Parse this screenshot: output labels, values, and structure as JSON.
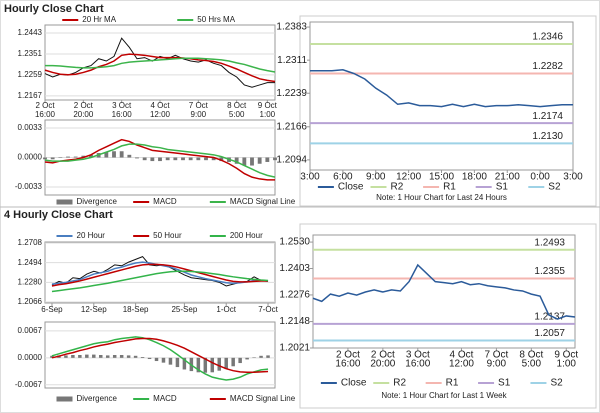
{
  "headers": [
    "Hourly Close Chart",
    "4 Hourly Close Chart"
  ],
  "chart_data": [
    {
      "type": "line",
      "xlim": [
        0,
        30
      ],
      "ylim": [
        1.2149,
        1.2478
      ],
      "yticks": [
        1.2443,
        1.2351,
        1.2259,
        1.2167
      ],
      "grid": true,
      "xticks": [
        {
          "value": 0,
          "label": "2 Oct",
          "sublabel": "16:00"
        },
        {
          "value": 5,
          "label": "2 Oct",
          "sublabel": "20:00"
        },
        {
          "value": 10,
          "label": "3 Oct",
          "sublabel": "16:00"
        },
        {
          "value": 15,
          "label": "4 Oct",
          "sublabel": "12:00"
        },
        {
          "value": 20,
          "label": "7 Oct",
          "sublabel": "9:00"
        },
        {
          "value": 25,
          "label": "8 Oct",
          "sublabel": "5:00"
        },
        {
          "value": 29,
          "label": "9 Oct",
          "sublabel": "1:00"
        }
      ],
      "series": [
        {
          "color": "#111111",
          "values": [
            1.2265,
            1.225,
            1.2262,
            1.2258,
            1.227,
            1.229,
            1.23,
            1.233,
            1.232,
            1.234,
            1.242,
            1.238,
            1.233,
            1.2335,
            1.232,
            1.234,
            1.233,
            1.2345,
            1.233,
            1.232,
            1.2315,
            1.2325,
            1.231,
            1.23,
            1.227,
            1.225,
            1.2215,
            1.2205,
            1.2215,
            1.2225,
            1.2225
          ]
        },
        {
          "name": "20 Hr MA",
          "color": "#c00000",
          "values": [
            1.228,
            1.227,
            1.2262,
            1.226,
            1.2262,
            1.227,
            1.228,
            1.2295,
            1.2305,
            1.232,
            1.2345,
            1.235,
            1.2348,
            1.2345,
            1.234,
            1.2335,
            1.2335,
            1.2335,
            1.2333,
            1.233,
            1.2325,
            1.2322,
            1.2318,
            1.231,
            1.2298,
            1.2285,
            1.227,
            1.2255,
            1.2242,
            1.2235,
            1.223
          ]
        },
        {
          "name": "50 Hrs MA",
          "color": "#3cb44b",
          "values": [
            1.23,
            1.23,
            1.2298,
            1.2295,
            1.2292,
            1.229,
            1.229,
            1.2292,
            1.2295,
            1.23,
            1.231,
            1.2315,
            1.2318,
            1.232,
            1.2322,
            1.2325,
            1.2327,
            1.233,
            1.2332,
            1.2332,
            1.2332,
            1.233,
            1.2328,
            1.2325,
            1.232,
            1.2312,
            1.2305,
            1.2295,
            1.2285,
            1.2278,
            1.2272
          ]
        }
      ]
    },
    {
      "type": "line",
      "xlim": [
        0,
        30
      ],
      "ylim": [
        -0.0042,
        0.0042
      ],
      "yticks": [
        0.0033,
        {
          "value": 0,
          "label": "0.0000"
        },
        -0.0033
      ],
      "grid": true,
      "series": [
        {
          "name": "Divergence",
          "color": "#777777",
          "style": "bar",
          "values": [
            -0.0002,
            -0.0002,
            0,
            0.0001,
            0.0001,
            0.0002,
            0.0003,
            0.0005,
            0.0006,
            0.0007,
            0.0007,
            0.0003,
            -0.0001,
            -0.0003,
            -0.0004,
            -0.0004,
            -0.0003,
            -0.0003,
            -0.0003,
            -0.0003,
            -0.0003,
            -0.0003,
            -0.0003,
            -0.0004,
            -0.0005,
            -0.0007,
            -0.0009,
            -0.0009,
            -0.0007,
            -0.0005,
            -0.0003
          ]
        },
        {
          "name": "MACD",
          "color": "#c00000",
          "values": [
            -0.0005,
            -0.0006,
            -0.0004,
            -0.0003,
            -0.0002,
            0,
            0.0003,
            0.0008,
            0.0012,
            0.0016,
            0.002,
            0.0018,
            0.0014,
            0.0011,
            0.0008,
            0.0007,
            0.0006,
            0.0005,
            0.0004,
            0.0003,
            0.0002,
            0.0001,
            0,
            -0.0003,
            -0.0007,
            -0.0012,
            -0.0018,
            -0.0022,
            -0.0024,
            -0.0025,
            -0.0025
          ]
        },
        {
          "name": "MACD Signal Line",
          "color": "#3cb44b",
          "values": [
            -0.0003,
            -0.0004,
            -0.0004,
            -0.0004,
            -0.0003,
            -0.0002,
            0,
            0.0003,
            0.0006,
            0.0009,
            0.0013,
            0.0015,
            0.0015,
            0.0014,
            0.0012,
            0.0011,
            0.0009,
            0.0008,
            0.0007,
            0.0006,
            0.0005,
            0.0004,
            0.0003,
            0.0001,
            -0.0002,
            -0.0005,
            -0.0009,
            -0.0013,
            -0.0017,
            -0.002,
            -0.0022
          ]
        }
      ]
    },
    {
      "type": "line",
      "xlim": [
        0,
        24
      ],
      "ylim": [
        1.2072,
        1.2394
      ],
      "yticks": [
        1.2383,
        1.2311,
        1.2239,
        1.2166,
        1.2094
      ],
      "grid": false,
      "xticks": [
        {
          "value": 0,
          "label": "3:00"
        },
        {
          "value": 3,
          "label": "6:00"
        },
        {
          "value": 6,
          "label": "9:00"
        },
        {
          "value": 9,
          "label": "12:00"
        },
        {
          "value": 12,
          "label": "15:00"
        },
        {
          "value": 15,
          "label": "18:00"
        },
        {
          "value": 18,
          "label": "21:00"
        },
        {
          "value": 21,
          "label": "0:00"
        },
        {
          "value": 24,
          "label": "3:00"
        }
      ],
      "series": [
        {
          "name": "Close",
          "color": "#2b5b9a",
          "values": [
            1.2288,
            1.2288,
            1.2288,
            1.229,
            1.2282,
            1.227,
            1.225,
            1.2235,
            1.2215,
            1.2218,
            1.2212,
            1.2212,
            1.221,
            1.2215,
            1.221,
            1.2215,
            1.221,
            1.2212,
            1.2212,
            1.2214,
            1.2212,
            1.221,
            1.2212,
            1.2214,
            1.2214
          ]
        }
      ],
      "levels": [
        {
          "name": "R2",
          "color": "#c5e0a0",
          "value": 1.2346
        },
        {
          "name": "R1",
          "color": "#f4b6b0",
          "value": 1.2282
        },
        {
          "name": "S1",
          "color": "#b7a2d4",
          "value": 1.2174
        },
        {
          "name": "S2",
          "color": "#9ed2e6",
          "value": 1.213,
          "value_label": "1.2130"
        }
      ],
      "note": "Note: 1 Hour Chart for Last 24 Hours"
    },
    {
      "type": "line",
      "xlim": [
        -1,
        32
      ],
      "ylim": [
        1.2055,
        1.2719
      ],
      "yticks": [
        1.2708,
        1.2494,
        {
          "value": 1.228,
          "label": "1.2280"
        },
        1.2066
      ],
      "grid": true,
      "xticks": [
        {
          "value": 0,
          "label": "6-Sep"
        },
        {
          "value": 6,
          "label": "12-Sep"
        },
        {
          "value": 12,
          "label": "18-Sep"
        },
        {
          "value": 19,
          "label": "25-Sep"
        },
        {
          "value": 25,
          "label": "1-Oct"
        },
        {
          "value": 31,
          "label": "7-Oct"
        }
      ],
      "series": [
        {
          "color": "#111111",
          "values": [
            1.225,
            1.229,
            1.227,
            1.233,
            1.232,
            1.237,
            1.24,
            1.238,
            1.242,
            1.247,
            1.246,
            1.25,
            1.253,
            1.256,
            1.247,
            1.246,
            1.247,
            1.244,
            1.24,
            1.236,
            1.233,
            1.232,
            1.231,
            1.23,
            1.228,
            1.224,
            1.226,
            1.228,
            1.229,
            1.234,
            1.23,
            1.229
          ]
        },
        {
          "name": "20 Hour",
          "color": "#4a7ec0",
          "values": [
            1.226,
            1.227,
            1.228,
            1.2295,
            1.231,
            1.234,
            1.237,
            1.2385,
            1.24,
            1.243,
            1.2445,
            1.247,
            1.249,
            1.25,
            1.249,
            1.2475,
            1.246,
            1.2445,
            1.242,
            1.239,
            1.236,
            1.234,
            1.232,
            1.2305,
            1.229,
            1.2275,
            1.227,
            1.2275,
            1.2285,
            1.23,
            1.23,
            1.2295
          ]
        },
        {
          "name": "50 Hour",
          "color": "#c00000",
          "values": [
            1.224,
            1.2255,
            1.2265,
            1.228,
            1.2295,
            1.2315,
            1.2335,
            1.2355,
            1.2375,
            1.2395,
            1.2415,
            1.2435,
            1.2455,
            1.247,
            1.2475,
            1.2475,
            1.247,
            1.246,
            1.2445,
            1.2425,
            1.2405,
            1.2385,
            1.2365,
            1.2345,
            1.2325,
            1.2305,
            1.229,
            1.2285,
            1.2285,
            1.229,
            1.2295,
            1.2295
          ]
        },
        {
          "name": "200 Hour",
          "color": "#33b44a",
          "values": [
            1.218,
            1.219,
            1.22,
            1.221,
            1.222,
            1.2232,
            1.2245,
            1.2258,
            1.227,
            1.2285,
            1.23,
            1.2315,
            1.233,
            1.2345,
            1.236,
            1.2375,
            1.2385,
            1.2395,
            1.24,
            1.24,
            1.2398,
            1.2392,
            1.2385,
            1.2375,
            1.2365,
            1.2352,
            1.234,
            1.233,
            1.232,
            1.2312,
            1.2305,
            1.23
          ]
        }
      ]
    },
    {
      "type": "line",
      "xlim": [
        -1,
        32
      ],
      "ylim": [
        -0.0075,
        0.0089
      ],
      "yticks": [
        0.0067,
        {
          "value": 0,
          "label": "0.0000"
        },
        -0.0067
      ],
      "grid": true,
      "series": [
        {
          "name": "Divergence",
          "color": "#777777",
          "style": "bar",
          "values": [
            0.0005,
            0.0006,
            0.0006,
            0.0007,
            0.0007,
            0.0008,
            0.0008,
            0.0007,
            0.0006,
            0.0007,
            0.0007,
            0.0006,
            0.0005,
            0.0002,
            -0.0003,
            -0.0008,
            -0.0012,
            -0.0017,
            -0.0023,
            -0.0029,
            -0.0033,
            -0.0036,
            -0.0037,
            -0.0036,
            -0.0032,
            -0.0028,
            -0.0021,
            -0.0013,
            -0.0004,
            0.0001,
            0.0005,
            0.0006
          ]
        },
        {
          "name": "MACD",
          "color": "#33b44a",
          "values": [
            0.0005,
            0.001,
            0.0015,
            0.002,
            0.0025,
            0.003,
            0.0035,
            0.0038,
            0.004,
            0.0045,
            0.0048,
            0.005,
            0.0052,
            0.005,
            0.0045,
            0.0038,
            0.003,
            0.002,
            0.0008,
            -0.0005,
            -0.0018,
            -0.003,
            -0.004,
            -0.0048,
            -0.0052,
            -0.0055,
            -0.0053,
            -0.0048,
            -0.004,
            -0.0035,
            -0.003,
            -0.0028
          ]
        },
        {
          "name": "MACD Signal Line",
          "color": "#c00000",
          "values": [
            0.0,
            0.0004,
            0.0009,
            0.0013,
            0.0018,
            0.0022,
            0.0027,
            0.0031,
            0.0034,
            0.0038,
            0.0041,
            0.0044,
            0.0047,
            0.0048,
            0.0048,
            0.0046,
            0.0042,
            0.0037,
            0.0031,
            0.0024,
            0.0015,
            0.0006,
            -0.0003,
            -0.0012,
            -0.002,
            -0.0027,
            -0.0032,
            -0.0035,
            -0.0036,
            -0.0036,
            -0.0035,
            -0.0034
          ]
        }
      ]
    },
    {
      "type": "line",
      "xlim": [
        0,
        30
      ],
      "ylim": [
        1.2021,
        1.2564
      ],
      "yticks": [
        {
          "value": 1.253,
          "label": "1.2530"
        },
        1.2403,
        1.2276,
        1.2148,
        1.2021
      ],
      "grid": false,
      "xticks": [
        {
          "value": 4,
          "label": "2 Oct",
          "sublabel": "16:00"
        },
        {
          "value": 8,
          "label": "2 Oct",
          "sublabel": "20:00"
        },
        {
          "value": 12,
          "label": "3 Oct",
          "sublabel": "16:00"
        },
        {
          "value": 17,
          "label": "4 Oct",
          "sublabel": "12:00"
        },
        {
          "value": 21,
          "label": "7 Oct",
          "sublabel": "9:00"
        },
        {
          "value": 25,
          "label": "8 Oct",
          "sublabel": "5:00"
        },
        {
          "value": 29,
          "label": "9 Oct",
          "sublabel": "1:00"
        }
      ],
      "series": [
        {
          "name": "Close",
          "color": "#2b5b9a",
          "values": [
            1.226,
            1.2245,
            1.228,
            1.227,
            1.2285,
            1.2275,
            1.229,
            1.23,
            1.229,
            1.23,
            1.2295,
            1.234,
            1.242,
            1.238,
            1.234,
            1.2335,
            1.233,
            1.234,
            1.2325,
            1.233,
            1.232,
            1.2315,
            1.231,
            1.23,
            1.2295,
            1.228,
            1.227,
            1.218,
            1.216,
            1.2175,
            1.217
          ]
        }
      ],
      "levels": [
        {
          "name": "R2",
          "color": "#c5e0a0",
          "value": 1.2493
        },
        {
          "name": "R1",
          "color": "#f4b6b0",
          "value": 1.2355
        },
        {
          "name": "S1",
          "color": "#b7a2d4",
          "value": 1.2137
        },
        {
          "name": "S2",
          "color": "#9ed2e6",
          "value": 1.2057
        }
      ],
      "note": "Note: 1 Hour Chart for Last 1 Week"
    }
  ]
}
